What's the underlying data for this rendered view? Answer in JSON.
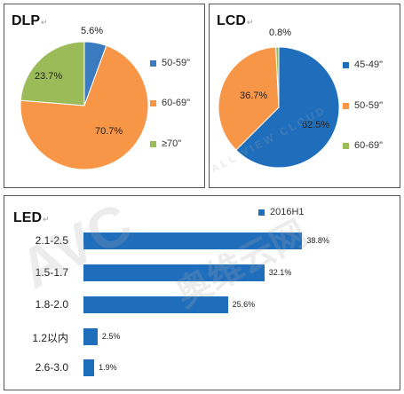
{
  "chart_data": [
    {
      "type": "pie",
      "title": "DLP",
      "categories": [
        "50-59\"",
        "60-69\"",
        "≥70\""
      ],
      "values": [
        5.6,
        70.7,
        23.7
      ],
      "labels": [
        "5.6%",
        "70.7%",
        "23.7%"
      ],
      "colors": [
        "#3b7bbf",
        "#f79646",
        "#9bbb59"
      ],
      "legend": "right"
    },
    {
      "type": "pie",
      "title": "LCD",
      "categories": [
        "45-49\"",
        "50-59\"",
        "60-69\""
      ],
      "values": [
        62.5,
        36.7,
        0.8
      ],
      "labels": [
        "62.5%",
        "36.7%",
        "0.8%"
      ],
      "colors": [
        "#1f6ebc",
        "#f79646",
        "#9bbb59"
      ],
      "legend": "right"
    },
    {
      "type": "bar",
      "orientation": "horizontal",
      "title": "LED",
      "categories": [
        "2.1-2.5",
        "1.5-1.7",
        "1.8-2.0",
        "1.2以内",
        "2.6-3.0"
      ],
      "series": [
        {
          "name": "2016H1",
          "values": [
            38.8,
            32.1,
            25.6,
            2.5,
            1.9
          ]
        }
      ],
      "value_labels": [
        "38.8%",
        "32.1%",
        "25.6%",
        "2.5%",
        "1.9%"
      ],
      "color": "#1f6ebc",
      "xlim": [
        0,
        40
      ],
      "legend": "top"
    }
  ],
  "title_mark": "↵",
  "watermark": {
    "brand": "AVC",
    "cn": "奥维云网",
    "en": "ALL VIEW CLOUD"
  }
}
